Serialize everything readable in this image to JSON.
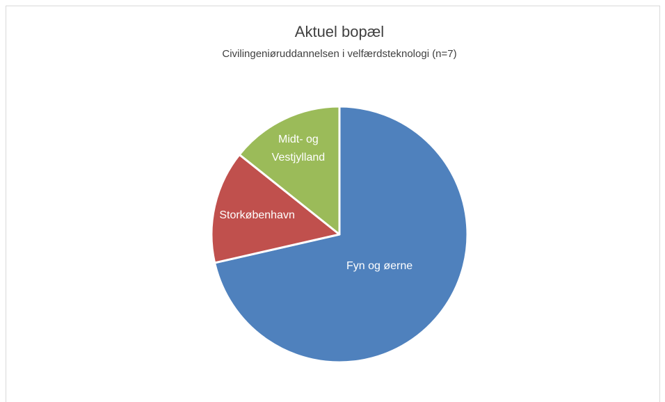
{
  "chart_data": {
    "type": "pie",
    "title": "Aktuel bopæl",
    "subtitle": "Civilingeniøruddannelsen i velfærdsteknologi (n=7)",
    "categories": [
      "Fyn og øerne",
      "Storkøbenhavn",
      "Midt- og Vestjylland"
    ],
    "values": [
      5,
      1,
      1
    ],
    "colors": [
      "#4f81bd",
      "#c0504d",
      "#9bbb59"
    ]
  }
}
